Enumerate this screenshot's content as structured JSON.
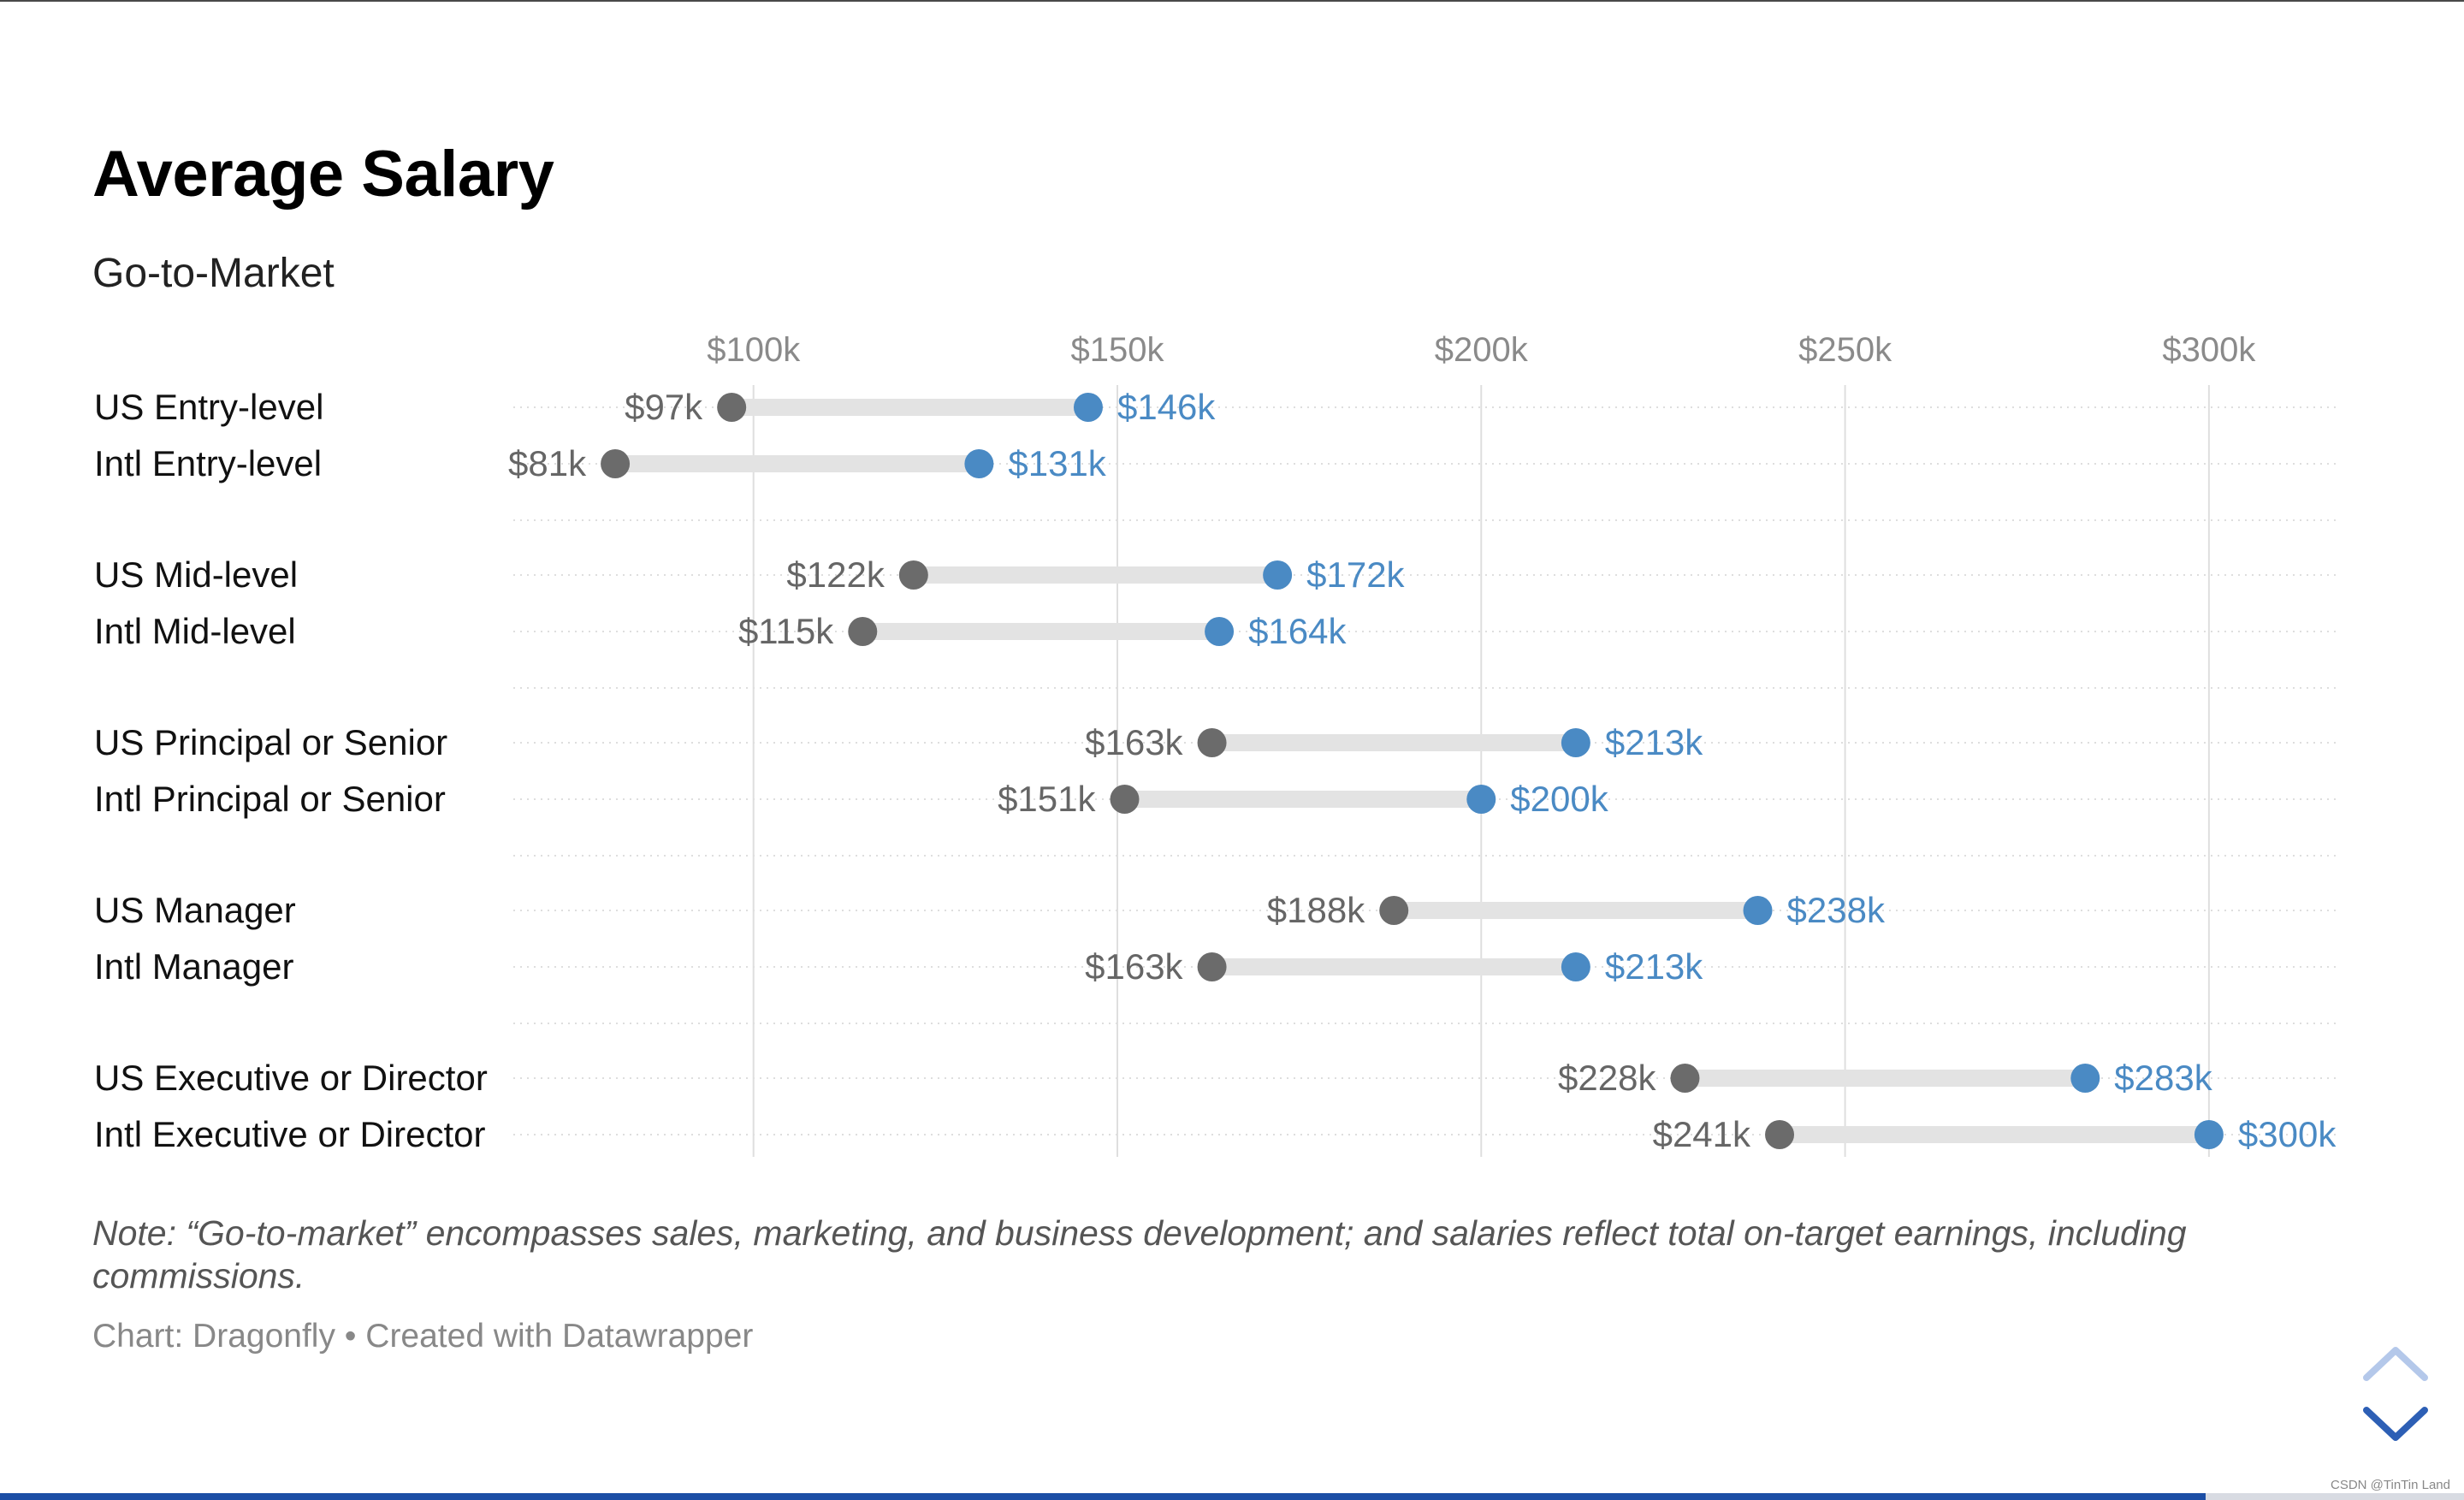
{
  "title": "Average Salary",
  "subtitle": "Go-to-Market",
  "note": "Note: “Go-to-market” encompasses sales, marketing, and business development; and salaries reflect total on-target earnings, including commissions.",
  "source": "Chart: Dragonfly • Created with Datawrapper",
  "watermark": "CSDN @TinTin Land",
  "nav": {
    "up_icon": "chevron-up-icon",
    "down_icon": "chevron-down-icon"
  },
  "progress": 0.895,
  "colors": {
    "low": "#6b6b6b",
    "high": "#4a8ac4",
    "bar": "#e3e3e3",
    "grid": "#dedede",
    "axis_label": "#8a8a8a",
    "nav": "#2d5fb5",
    "nav_light": "#b4c8ea"
  },
  "chart_data": {
    "type": "range-dot",
    "x_axis": {
      "min": 67,
      "max": 318,
      "ticks": [
        100,
        150,
        200,
        250,
        300
      ],
      "tick_labels": [
        "$100k",
        "$150k",
        "$200k",
        "$250k",
        "$300k"
      ]
    },
    "series": [
      {
        "values": "low"
      },
      {
        "values": "high"
      }
    ],
    "rows": [
      {
        "category": "US Entry-level",
        "low": 97,
        "high": 146,
        "low_label": "$97k",
        "high_label": "$146k"
      },
      {
        "category": "Intl Entry-level",
        "low": 81,
        "high": 131,
        "low_label": "$81k",
        "high_label": "$131k"
      },
      {
        "category": "US Mid-level",
        "low": 122,
        "high": 172,
        "low_label": "$122k",
        "high_label": "$172k"
      },
      {
        "category": "Intl Mid-level",
        "low": 115,
        "high": 164,
        "low_label": "$115k",
        "high_label": "$164k"
      },
      {
        "category": "US Principal or Senior",
        "low": 163,
        "high": 213,
        "low_label": "$163k",
        "high_label": "$213k"
      },
      {
        "category": "Intl Principal or Senior",
        "low": 151,
        "high": 200,
        "low_label": "$151k",
        "high_label": "$200k"
      },
      {
        "category": "US Manager",
        "low": 188,
        "high": 238,
        "low_label": "$188k",
        "high_label": "$238k"
      },
      {
        "category": "Intl Manager",
        "low": 163,
        "high": 213,
        "low_label": "$163k",
        "high_label": "$213k"
      },
      {
        "category": "US Executive or Director",
        "low": 228,
        "high": 283,
        "low_label": "$228k",
        "high_label": "$283k"
      },
      {
        "category": "Intl Executive or Director",
        "low": 241,
        "high": 300,
        "low_label": "$241k",
        "high_label": "$300k"
      }
    ],
    "grid": true
  }
}
